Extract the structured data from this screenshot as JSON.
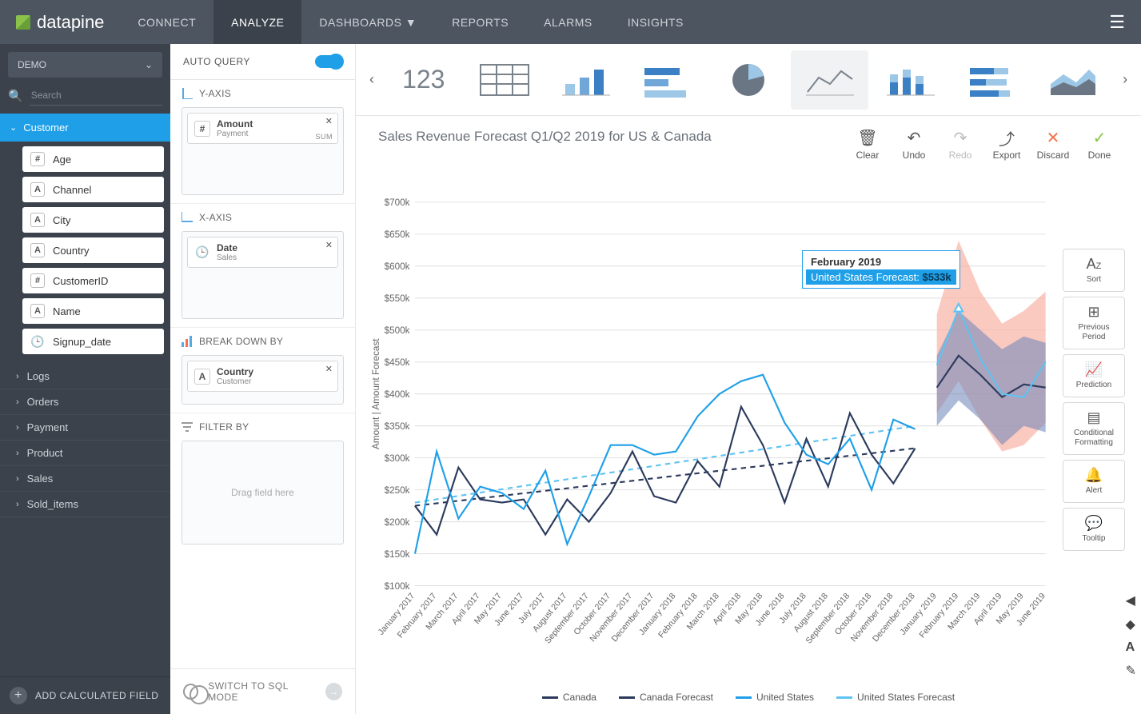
{
  "brand": "datapine",
  "nav": {
    "items": [
      "CONNECT",
      "ANALYZE",
      "DASHBOARDS",
      "REPORTS",
      "ALARMS",
      "INSIGHTS"
    ],
    "active": 1,
    "dropdown_index": 2
  },
  "schema": {
    "selected": "DEMO"
  },
  "search": {
    "placeholder": "Search"
  },
  "tree": {
    "open_group": "Customer",
    "fields": [
      {
        "type": "#",
        "label": "Age"
      },
      {
        "type": "A",
        "label": "Channel"
      },
      {
        "type": "A",
        "label": "City"
      },
      {
        "type": "A",
        "label": "Country"
      },
      {
        "type": "#",
        "label": "CustomerID"
      },
      {
        "type": "A",
        "label": "Name"
      },
      {
        "type": "clock",
        "label": "Signup_date"
      }
    ],
    "groups": [
      "Logs",
      "Orders",
      "Payment",
      "Product",
      "Sales",
      "Sold_items"
    ]
  },
  "add_calc_label": "ADD CALCULATED FIELD",
  "config": {
    "auto_query": "AUTO QUERY",
    "y_axis": {
      "title": "Y-AXIS",
      "pill": {
        "type": "#",
        "main": "Amount",
        "sub": "Payment",
        "agg": "SUM"
      }
    },
    "x_axis": {
      "title": "X-AXIS",
      "pill": {
        "type": "clock",
        "main": "Date",
        "sub": "Sales"
      }
    },
    "breakdown": {
      "title": "BREAK DOWN BY",
      "pill": {
        "type": "A",
        "main": "Country",
        "sub": "Customer"
      }
    },
    "filter": {
      "title": "FILTER BY",
      "placeholder": "Drag field here"
    },
    "sql_switch": "SWITCH TO SQL MODE"
  },
  "chart_types": {
    "text_label": "123"
  },
  "toolbar": {
    "title": "Sales Revenue Forecast Q1/Q2 2019 for US & Canada",
    "actions": [
      {
        "icon": "trash",
        "label": "Clear"
      },
      {
        "icon": "undo",
        "label": "Undo"
      },
      {
        "icon": "redo",
        "label": "Redo",
        "disabled": true
      },
      {
        "icon": "export",
        "label": "Export"
      },
      {
        "icon": "x",
        "label": "Discard",
        "cls": "discard"
      },
      {
        "icon": "check",
        "label": "Done",
        "cls": "done"
      }
    ]
  },
  "side_tools": [
    {
      "icon": "AZ",
      "label": "Sort"
    },
    {
      "icon": "grid",
      "label": "Previous Period"
    },
    {
      "icon": "trend",
      "label": "Prediction"
    },
    {
      "icon": "bars",
      "label": "Conditional Formatting"
    },
    {
      "icon": "bell",
      "label": "Alert"
    },
    {
      "icon": "tooltip",
      "label": "Tooltip"
    }
  ],
  "tooltip": {
    "date": "February 2019",
    "series": "United States Forecast:",
    "value": "$533k"
  },
  "chart": {
    "y_axis_label": "Amount | Amount Forecast",
    "y_ticks": [
      "$700k",
      "$650k",
      "$600k",
      "$550k",
      "$500k",
      "$450k",
      "$400k",
      "$350k",
      "$300k",
      "$250k",
      "$200k",
      "$150k",
      "$100k"
    ],
    "y_min": 100,
    "y_max": 700,
    "x_labels": [
      "January 2017",
      "February 2017",
      "March 2017",
      "April 2017",
      "May 2017",
      "June 2017",
      "July 2017",
      "August 2017",
      "September 2017",
      "October 2017",
      "November 2017",
      "December 2017",
      "January 2018",
      "February 2018",
      "March 2018",
      "April 2018",
      "May 2018",
      "June 2018",
      "July 2018",
      "August 2018",
      "September 2018",
      "October 2018",
      "November 2018",
      "December 2018",
      "January 2019",
      "February 2019",
      "March 2019",
      "April 2019",
      "May 2019",
      "June 2019"
    ],
    "series": {
      "canada": {
        "label": "Canada",
        "color": "#2b3a5c",
        "values": [
          225,
          180,
          285,
          235,
          230,
          235,
          180,
          235,
          200,
          245,
          310,
          240,
          230,
          295,
          255,
          380,
          320,
          230,
          330,
          255,
          370,
          305,
          260,
          315
        ]
      },
      "canada_forecast": {
        "label": "Canada Forecast",
        "color": "#2b3a5c",
        "dashed": true,
        "trend": [
          225,
          315
        ],
        "forecast": [
          410,
          460,
          430,
          395,
          415,
          410
        ],
        "band_lo": [
          350,
          390,
          360,
          320,
          350,
          340
        ],
        "band_hi": [
          460,
          530,
          500,
          470,
          490,
          480
        ],
        "band_color": "#6b84b8",
        "band_opacity": 0.55
      },
      "us": {
        "label": "United States",
        "color": "#1e9fe8",
        "values": [
          150,
          310,
          205,
          255,
          245,
          220,
          280,
          165,
          240,
          320,
          320,
          305,
          310,
          365,
          400,
          420,
          430,
          355,
          305,
          290,
          330,
          250,
          360,
          345
        ]
      },
      "us_forecast": {
        "label": "United States Forecast",
        "color": "#5ec3f2",
        "dashed": true,
        "trend": [
          230,
          350
        ],
        "forecast": [
          445,
          533,
          455,
          400,
          395,
          450
        ],
        "band_lo": [
          370,
          420,
          360,
          310,
          320,
          355
        ],
        "band_hi": [
          525,
          640,
          560,
          510,
          530,
          560
        ],
        "band_color": "#f8b3a6",
        "band_opacity": 0.7,
        "marker_index": 1
      }
    },
    "legend_order": [
      "canada",
      "canada_forecast",
      "us",
      "us_forecast"
    ],
    "plot": {
      "bg": "#ffffff",
      "grid": "#e0e0e0",
      "forecast_start_index": 24
    }
  }
}
